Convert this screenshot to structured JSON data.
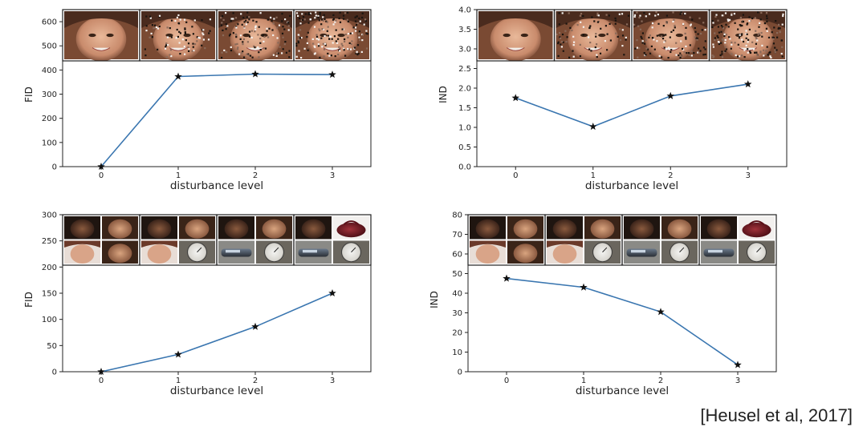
{
  "citation": "[Heusel et al, 2017]",
  "colors": {
    "line": "#3a76b0",
    "marker": "#111111",
    "axis": "#222222"
  },
  "chart_data": [
    {
      "type": "line",
      "x": [
        0,
        1,
        2,
        3
      ],
      "series": [
        {
          "values": [
            0,
            373,
            383,
            381
          ],
          "marker": "star"
        }
      ],
      "xlabel": "disturbance level",
      "ylabel": "FID",
      "xticks": [
        "0",
        "1",
        "2",
        "3"
      ],
      "yticks": [
        0,
        100,
        200,
        300,
        400,
        500,
        600
      ],
      "ylim": [
        0,
        650
      ],
      "xlim": [
        -0.5,
        3.5
      ],
      "inset_images": {
        "count": 4,
        "description_tag": "face-gaussian-noise",
        "grid": 1
      },
      "grid": false
    },
    {
      "type": "line",
      "x": [
        0,
        1,
        2,
        3
      ],
      "series": [
        {
          "values": [
            1.75,
            1.02,
            1.8,
            2.1
          ],
          "marker": "star"
        }
      ],
      "xlabel": "disturbance level",
      "ylabel": "IND",
      "xticks": [
        "0",
        "1",
        "2",
        "3"
      ],
      "yticks": [
        0.0,
        0.5,
        1.0,
        1.5,
        2.0,
        2.5,
        3.0,
        3.5,
        4.0
      ],
      "ytick_labels": [
        "0.0",
        "0.5",
        "1.0",
        "1.5",
        "2.0",
        "2.5",
        "3.0",
        "3.5",
        "4.0"
      ],
      "ylim": [
        0,
        4.0
      ],
      "xlim": [
        -0.5,
        3.5
      ],
      "inset_images": {
        "count": 4,
        "description_tag": "face-gaussian-noise",
        "grid": 1
      },
      "grid": false
    },
    {
      "type": "line",
      "x": [
        0,
        1,
        2,
        3
      ],
      "series": [
        {
          "values": [
            0,
            33,
            86,
            150
          ],
          "marker": "star"
        }
      ],
      "xlabel": "disturbance level",
      "ylabel": "FID",
      "xticks": [
        "0",
        "1",
        "2",
        "3"
      ],
      "yticks": [
        0,
        50,
        100,
        150,
        200,
        250,
        300
      ],
      "ylim": [
        0,
        300
      ],
      "xlim": [
        -0.5,
        3.5
      ],
      "inset_images": {
        "count": 4,
        "description_tag": "faces-mixed-with-imagenet",
        "grid": 2
      },
      "grid": false
    },
    {
      "type": "line",
      "x": [
        0,
        1,
        2,
        3
      ],
      "series": [
        {
          "values": [
            47.5,
            43,
            30.5,
            3.5
          ],
          "marker": "star"
        }
      ],
      "xlabel": "disturbance level",
      "ylabel": "IND",
      "xticks": [
        "0",
        "1",
        "2",
        "3"
      ],
      "yticks": [
        0,
        10,
        20,
        30,
        40,
        50,
        60,
        70,
        80
      ],
      "ylim": [
        0,
        80
      ],
      "xlim": [
        -0.5,
        3.5
      ],
      "inset_images": {
        "count": 4,
        "description_tag": "faces-mixed-with-imagenet",
        "grid": 2
      },
      "grid": false
    }
  ]
}
